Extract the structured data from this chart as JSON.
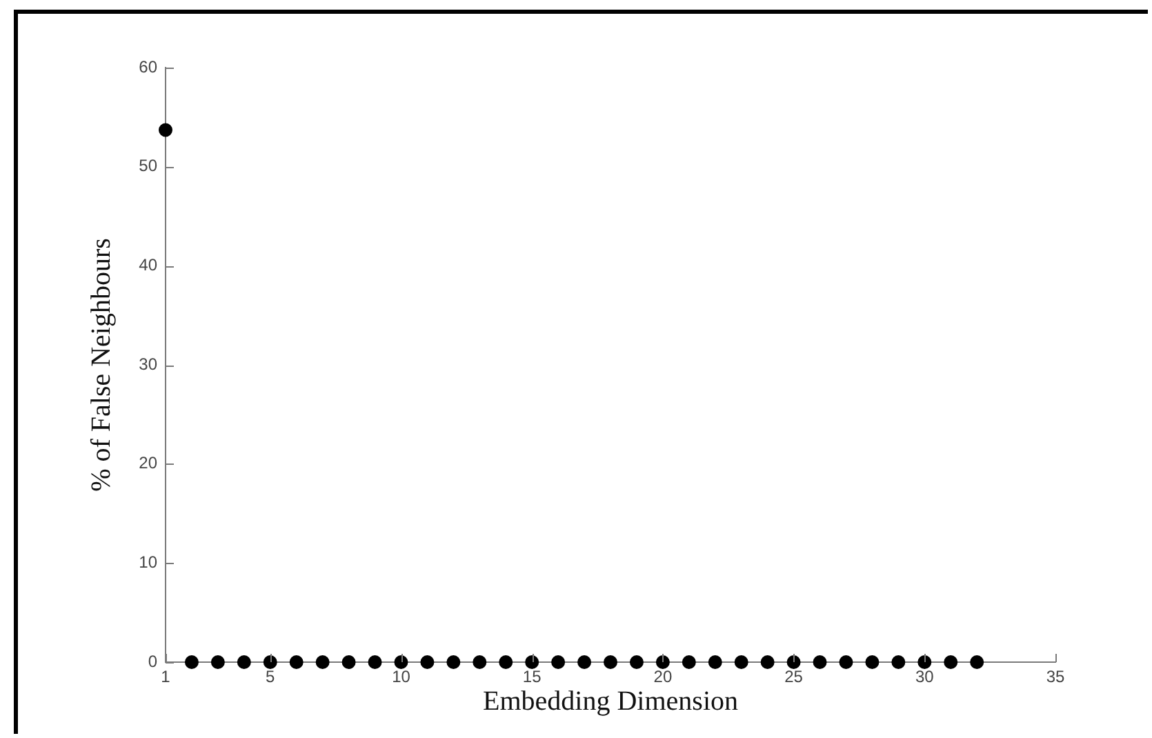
{
  "chart_data": {
    "type": "scatter",
    "xlabel": "Embedding Dimension",
    "ylabel": "% of False Neighbours",
    "x": [
      1,
      2,
      3,
      4,
      5,
      6,
      7,
      8,
      9,
      10,
      11,
      12,
      13,
      14,
      15,
      16,
      17,
      18,
      19,
      20,
      21,
      22,
      23,
      24,
      25,
      26,
      27,
      28,
      29,
      30,
      31,
      32
    ],
    "values": [
      53.7,
      0,
      0,
      0,
      0,
      0,
      0,
      0,
      0,
      0,
      0,
      0,
      0,
      0,
      0,
      0,
      0,
      0,
      0,
      0,
      0,
      0,
      0,
      0,
      0,
      0,
      0,
      0,
      0,
      0,
      0,
      0
    ],
    "color": "#000000",
    "marker": "circle",
    "xlim": [
      1,
      35
    ],
    "xticks": [
      1,
      5,
      10,
      15,
      20,
      25,
      30,
      35
    ],
    "ylim": [
      0,
      60
    ],
    "yticks": [
      0,
      10,
      20,
      30,
      40,
      50,
      60
    ],
    "grid": false,
    "legend": false
  }
}
